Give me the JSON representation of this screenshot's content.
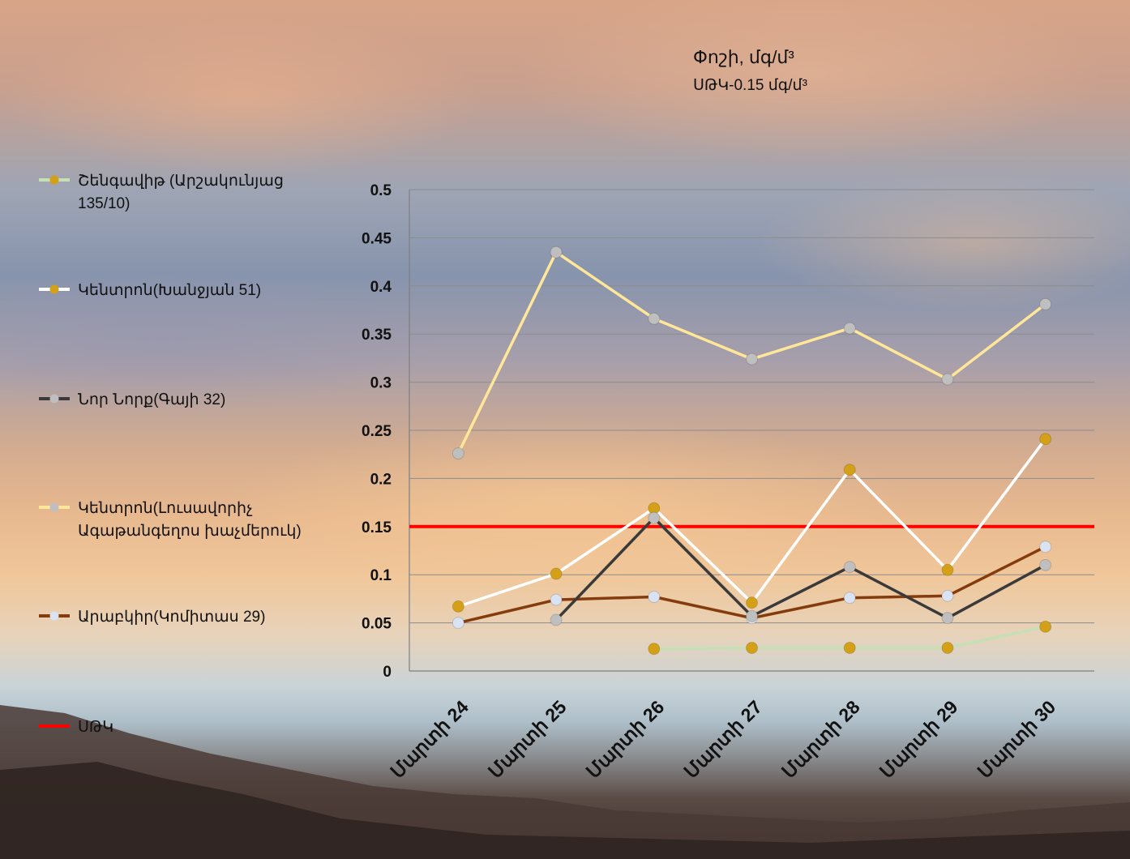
{
  "chart_data": {
    "type": "line",
    "title": "Փոշի, մգ/մ³",
    "subtitle": "ՍԹԿ-0.15 մգ/մ³",
    "categories": [
      "Մարտի 24",
      "Մարտի 25",
      "Մարտի 26",
      "Մարտի 27",
      "Մարտի 28",
      "Մարտի 29",
      "Մարտի 30"
    ],
    "ylim": [
      0,
      0.5
    ],
    "yticks": [
      "0",
      "0.05",
      "0.1",
      "0.15",
      "0.2",
      "0.25",
      "0.3",
      "0.35",
      "0.4",
      "0.45",
      "0.5"
    ],
    "ytick_values": [
      0,
      0.05,
      0.1,
      0.15,
      0.2,
      0.25,
      0.3,
      0.35,
      0.4,
      0.45,
      0.5
    ],
    "grid": true,
    "legend_position": "left",
    "series": [
      {
        "name": "Շենգավիթ (Արշակունյաց 135/10)",
        "line_color": "#c5e0b4",
        "marker_color": "#d4a017",
        "values": [
          null,
          null,
          0.023,
          0.024,
          0.024,
          0.024,
          0.046
        ]
      },
      {
        "name": "Կենտրոն(Խանջյան 51)",
        "line_color": "#ffffff",
        "marker_color": "#d4a017",
        "values": [
          0.067,
          0.101,
          0.169,
          0.071,
          0.209,
          0.105,
          0.241
        ]
      },
      {
        "name": "Նոր Նորք(Գայի 32)",
        "line_color": "#3a3a3a",
        "marker_color": "#bfbfbf",
        "values": [
          null,
          0.053,
          0.159,
          0.057,
          0.108,
          0.055,
          0.11
        ]
      },
      {
        "name": "Կենտրոն(Լուսավորիչ Ագաթանգեղոս խաչմերուկ)",
        "line_color": "#ffe699",
        "marker_color": "#bfbfbf",
        "values": [
          0.226,
          0.435,
          0.366,
          0.324,
          0.356,
          0.303,
          0.381
        ]
      },
      {
        "name": "Արաբկիր(Կոմիտաս 29)",
        "line_color": "#843c0c",
        "marker_color": "#dae3f3",
        "values": [
          0.05,
          0.074,
          0.077,
          0.055,
          0.076,
          0.078,
          0.129
        ]
      }
    ],
    "reference_line": {
      "name": "ՍԹԿ",
      "value": 0.15,
      "color": "#ff0000"
    }
  }
}
